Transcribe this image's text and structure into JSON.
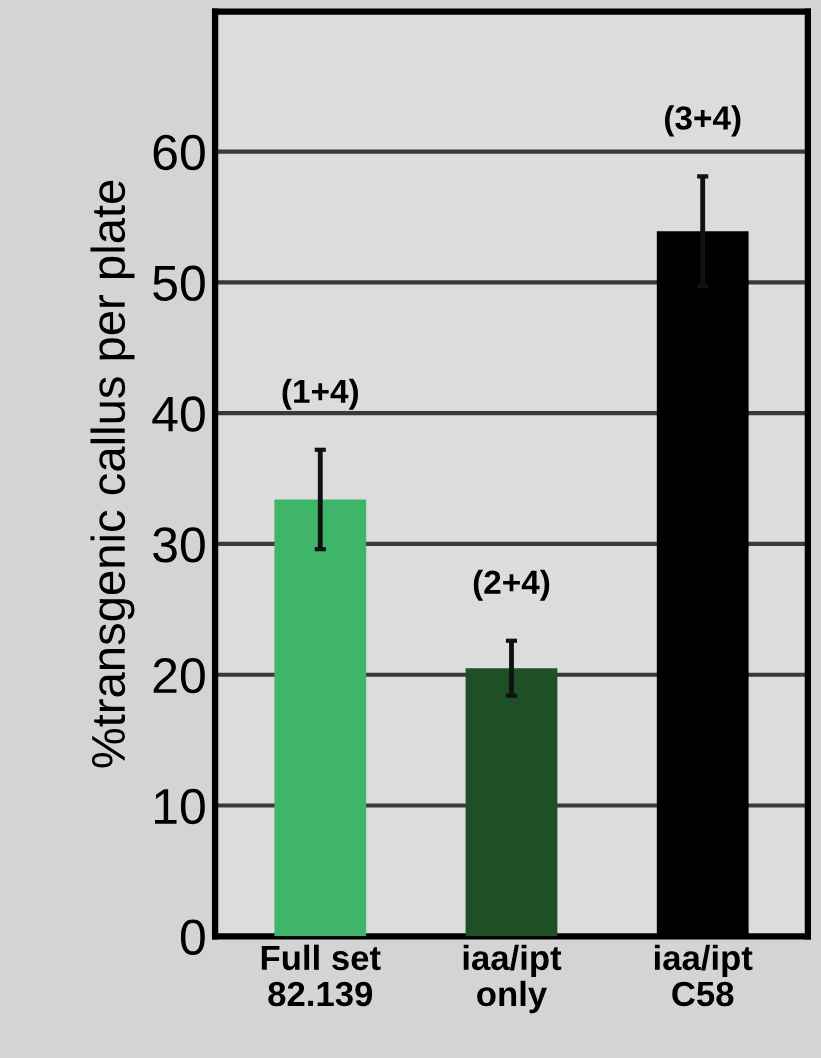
{
  "chart_data": {
    "type": "bar",
    "ylabel": "%transgenic callus per plate",
    "categories": [
      "Full set\n82.139",
      "iaa/ipt\nonly",
      "iaa/ipt\nC58"
    ],
    "values": [
      33.4,
      20.5,
      53.9
    ],
    "colors": [
      "#3fb56a",
      "#1f4f25",
      "#000000"
    ],
    "errors": [
      3.8,
      2.1,
      4.2
    ],
    "ylim": [
      0,
      70.7
    ],
    "yticks": [
      0,
      10,
      20,
      30,
      40,
      50,
      60
    ],
    "grid": "y",
    "annotations": [
      "(1+4)",
      "(2+4)",
      "(3+4)"
    ]
  }
}
